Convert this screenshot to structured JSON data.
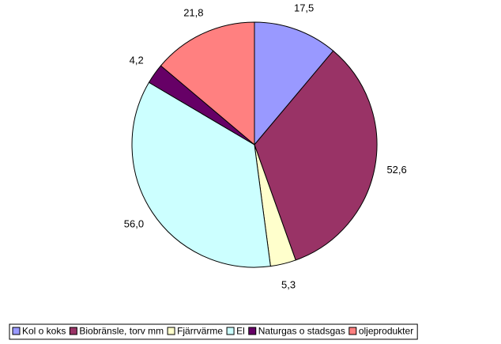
{
  "chart_data": {
    "type": "pie",
    "categories": [
      "Kol o koks",
      "Biobränsle, torv mm",
      "Fjärrvärme",
      "El",
      "Naturgas o stadsgas",
      "oljeprodukter"
    ],
    "values": [
      17.5,
      52.6,
      5.3,
      56.0,
      4.2,
      21.8
    ],
    "value_labels": [
      "17,5",
      "52,6",
      "5,3",
      "56,0",
      "4,2",
      "21,8"
    ],
    "colors": [
      "#9999ff",
      "#993366",
      "#ffffcc",
      "#ccffff",
      "#660066",
      "#ff8080"
    ],
    "legend": "bottom"
  }
}
